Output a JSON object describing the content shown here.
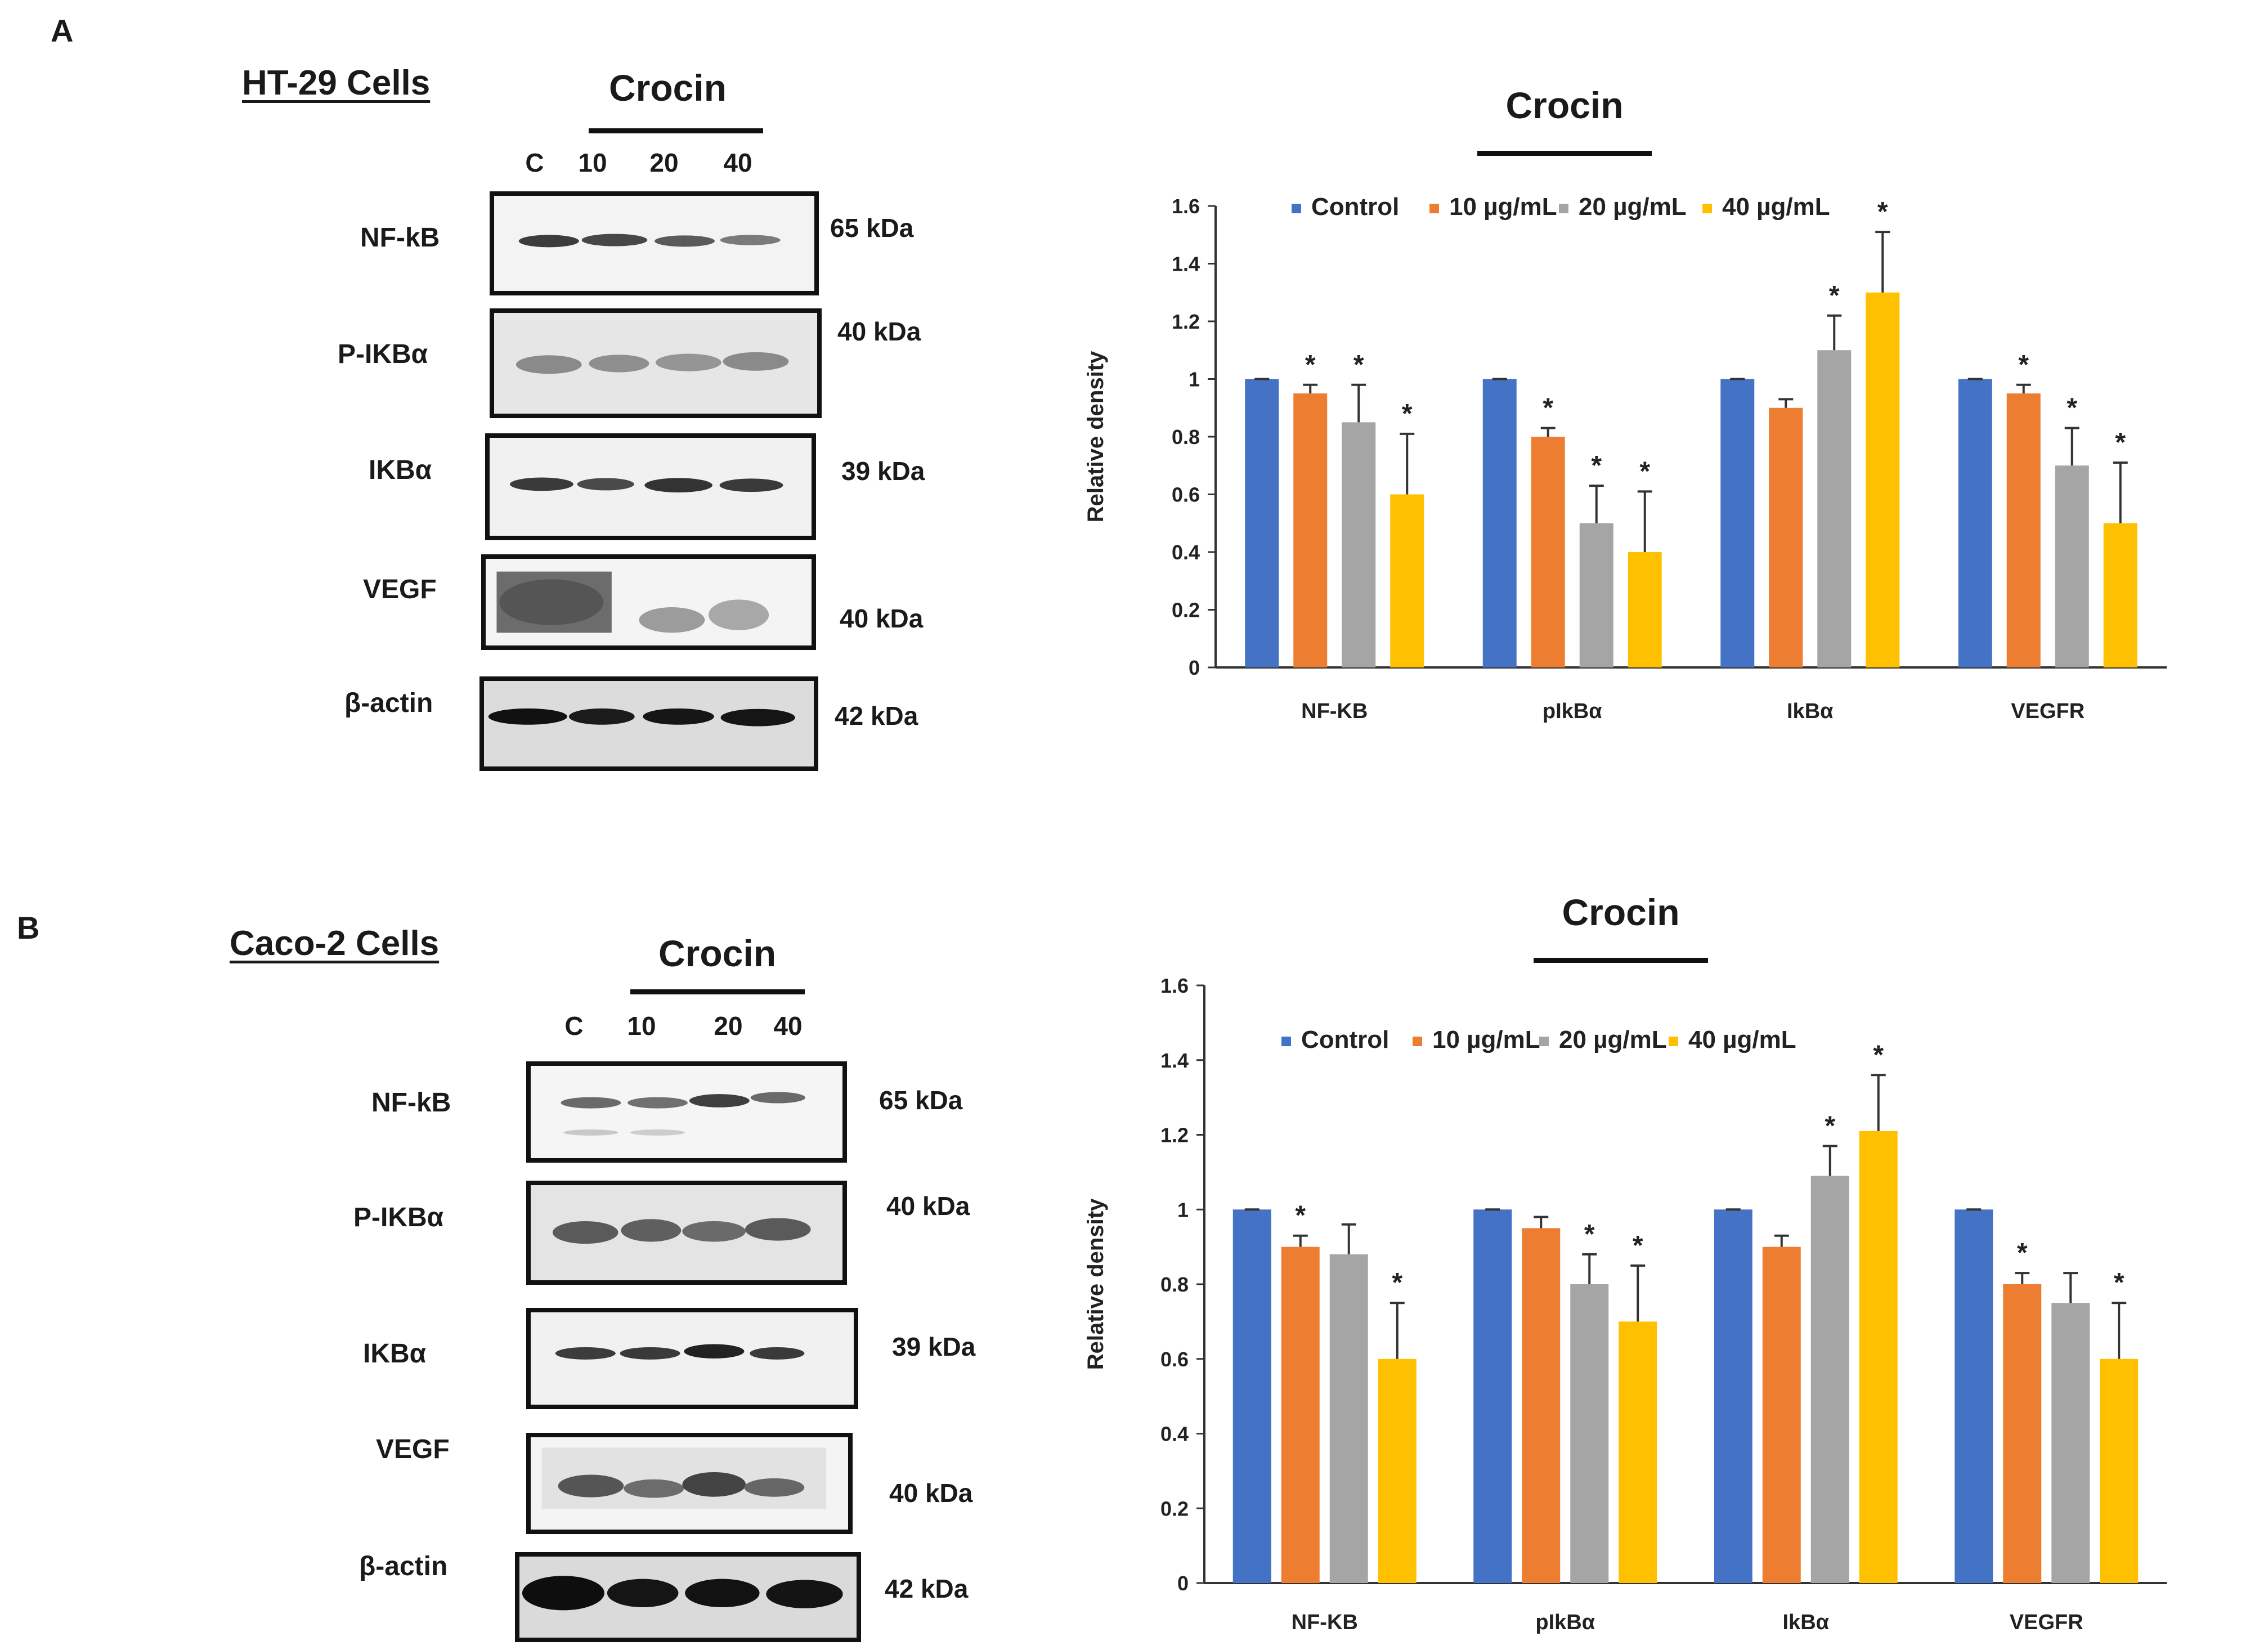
{
  "colors": {
    "control": "#4472c4",
    "c10": "#ed7d31",
    "c20": "#a5a5a5",
    "c40": "#ffc000"
  },
  "lane_labels": [
    "C",
    "10",
    "20",
    "40"
  ],
  "panels": [
    {
      "letter": "A",
      "cells_title": "HT-29 Cells",
      "crocin_label": "Crocin",
      "blots": [
        {
          "protein": "NF-kB",
          "kda": "65 kDa"
        },
        {
          "protein": "P-IKBα",
          "kda": "40 kDa"
        },
        {
          "protein": "IKBα",
          "kda": "39 kDa"
        },
        {
          "protein": "VEGF",
          "kda": "40 kDa"
        },
        {
          "protein": "β-actin",
          "kda": "42 kDa"
        }
      ]
    },
    {
      "letter": "B",
      "cells_title": "Caco-2 Cells",
      "crocin_label": "Crocin",
      "blots": [
        {
          "protein": "NF-kB",
          "kda": "65 kDa"
        },
        {
          "protein": "P-IKBα",
          "kda": "40 kDa"
        },
        {
          "protein": "IKBα",
          "kda": "39 kDa"
        },
        {
          "protein": "VEGF",
          "kda": "40 kDa"
        },
        {
          "protein": "β-actin",
          "kda": "42 kDa"
        }
      ]
    }
  ],
  "chart_data": [
    {
      "type": "bar",
      "title": "Crocin",
      "ylabel": "Relative density",
      "xlabel": "",
      "ylim": [
        0,
        1.6
      ],
      "yticks": [
        "0",
        "0.2",
        "0.4",
        "0.6",
        "0.8",
        "1",
        "1.2",
        "1.4",
        "1.6"
      ],
      "legend_position": "top",
      "categories": [
        "NF-KB",
        "pIkBα",
        "IkBα",
        "VEGFR"
      ],
      "series": [
        {
          "name": "Control",
          "values": [
            1.0,
            1.0,
            1.0,
            1.0
          ],
          "errors": [
            0,
            0,
            0,
            0
          ],
          "sig": [
            false,
            false,
            false,
            false
          ]
        },
        {
          "name": "10 µg/mL",
          "values": [
            0.95,
            0.8,
            0.9,
            0.95
          ],
          "errors": [
            0.03,
            0.03,
            0.03,
            0.03
          ],
          "sig": [
            true,
            true,
            false,
            true
          ]
        },
        {
          "name": "20 µg/mL",
          "values": [
            0.85,
            0.5,
            1.1,
            0.7
          ],
          "errors": [
            0.13,
            0.13,
            0.12,
            0.13
          ],
          "sig": [
            true,
            true,
            true,
            true
          ]
        },
        {
          "name": "40 µg/mL",
          "values": [
            0.6,
            0.4,
            1.3,
            0.5
          ],
          "errors": [
            0.21,
            0.21,
            0.21,
            0.21
          ],
          "sig": [
            true,
            true,
            true,
            true
          ]
        }
      ],
      "star": "*"
    },
    {
      "type": "bar",
      "title": "Crocin",
      "ylabel": "Relative density",
      "xlabel": "",
      "ylim": [
        0,
        1.6
      ],
      "yticks": [
        "0",
        "0.2",
        "0.4",
        "0.6",
        "0.8",
        "1",
        "1.2",
        "1.4",
        "1.6"
      ],
      "legend_position": "top",
      "categories": [
        "NF-KB",
        "pIkBα",
        "IkBα",
        "VEGFR"
      ],
      "series": [
        {
          "name": "Control",
          "values": [
            1.0,
            1.0,
            1.0,
            1.0
          ],
          "errors": [
            0,
            0,
            0,
            0
          ],
          "sig": [
            false,
            false,
            false,
            false
          ]
        },
        {
          "name": "10 µg/mL",
          "values": [
            0.9,
            0.95,
            0.9,
            0.8
          ],
          "errors": [
            0.03,
            0.03,
            0.03,
            0.03
          ],
          "sig": [
            true,
            false,
            false,
            true
          ]
        },
        {
          "name": "20 µg/mL",
          "values": [
            0.88,
            0.8,
            1.09,
            0.75
          ],
          "errors": [
            0.08,
            0.08,
            0.08,
            0.08
          ],
          "sig": [
            false,
            true,
            true,
            false
          ]
        },
        {
          "name": "40 µg/mL",
          "values": [
            0.6,
            0.7,
            1.21,
            0.6
          ],
          "errors": [
            0.15,
            0.15,
            0.15,
            0.15
          ],
          "sig": [
            true,
            true,
            true,
            true
          ]
        }
      ],
      "star": "*"
    }
  ]
}
